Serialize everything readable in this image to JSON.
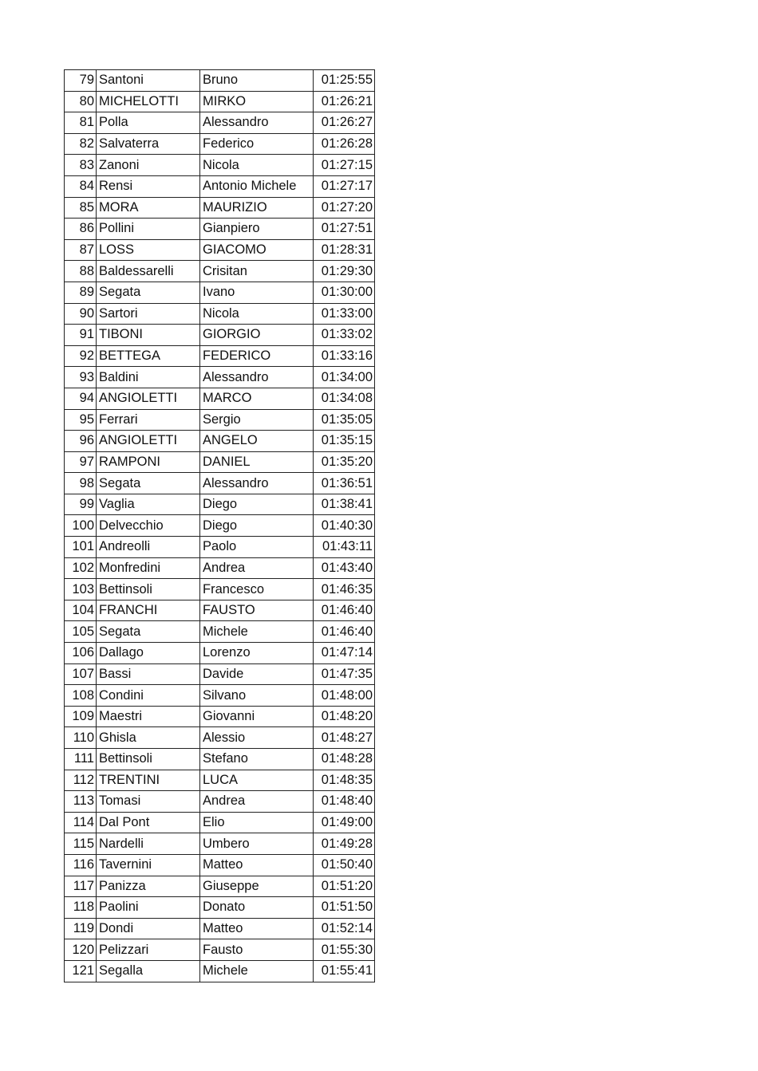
{
  "results": [
    [
      "79",
      "Santoni",
      "Bruno",
      "01:25:55"
    ],
    [
      "80",
      "MICHELOTTI",
      "MIRKO",
      "01:26:21"
    ],
    [
      "81",
      "Polla",
      "Alessandro",
      "01:26:27"
    ],
    [
      "82",
      "Salvaterra",
      "Federico",
      "01:26:28"
    ],
    [
      "83",
      "Zanoni",
      "Nicola",
      "01:27:15"
    ],
    [
      "84",
      "Rensi",
      "Antonio Michele",
      "01:27:17"
    ],
    [
      "85",
      "MORA",
      "MAURIZIO",
      "01:27:20"
    ],
    [
      "86",
      "Pollini",
      "Gianpiero",
      "01:27:51"
    ],
    [
      "87",
      "LOSS",
      "GIACOMO",
      "01:28:31"
    ],
    [
      "88",
      "Baldessarelli",
      "Crisitan",
      "01:29:30"
    ],
    [
      "89",
      "Segata",
      "Ivano",
      "01:30:00"
    ],
    [
      "90",
      "Sartori",
      "Nicola",
      "01:33:00"
    ],
    [
      "91",
      "TIBONI",
      "GIORGIO",
      "01:33:02"
    ],
    [
      "92",
      "BETTEGA",
      "FEDERICO",
      "01:33:16"
    ],
    [
      "93",
      "Baldini",
      "Alessandro",
      "01:34:00"
    ],
    [
      "94",
      "ANGIOLETTI",
      "MARCO",
      "01:34:08"
    ],
    [
      "95",
      "Ferrari",
      "Sergio",
      "01:35:05"
    ],
    [
      "96",
      "ANGIOLETTI",
      "ANGELO",
      "01:35:15"
    ],
    [
      "97",
      "RAMPONI",
      "DANIEL",
      "01:35:20"
    ],
    [
      "98",
      "Segata",
      "Alessandro",
      "01:36:51"
    ],
    [
      "99",
      "Vaglia",
      "Diego",
      "01:38:41"
    ],
    [
      "100",
      "Delvecchio",
      "Diego",
      "01:40:30"
    ],
    [
      "101",
      "Andreolli",
      "Paolo",
      "01:43:11"
    ],
    [
      "102",
      "Monfredini",
      "Andrea",
      "01:43:40"
    ],
    [
      "103",
      "Bettinsoli",
      "Francesco",
      "01:46:35"
    ],
    [
      "104",
      "FRANCHI",
      "FAUSTO",
      "01:46:40"
    ],
    [
      "105",
      "Segata",
      "Michele",
      "01:46:40"
    ],
    [
      "106",
      "Dallago",
      "Lorenzo",
      "01:47:14"
    ],
    [
      "107",
      "Bassi",
      "Davide",
      "01:47:35"
    ],
    [
      "108",
      "Condini",
      "Silvano",
      "01:48:00"
    ],
    [
      "109",
      "Maestri",
      "Giovanni",
      "01:48:20"
    ],
    [
      "110",
      "Ghisla",
      "Alessio",
      "01:48:27"
    ],
    [
      "111",
      "Bettinsoli",
      "Stefano",
      "01:48:28"
    ],
    [
      "112",
      "TRENTINI",
      "LUCA",
      "01:48:35"
    ],
    [
      "113",
      "Tomasi",
      "Andrea",
      "01:48:40"
    ],
    [
      "114",
      "Dal Pont",
      "Elio",
      "01:49:00"
    ],
    [
      "115",
      "Nardelli",
      "Umbero",
      "01:49:28"
    ],
    [
      "116",
      "Tavernini",
      "Matteo",
      "01:50:40"
    ],
    [
      "117",
      "Panizza",
      "Giuseppe",
      "01:51:20"
    ],
    [
      "118",
      "Paolini",
      "Donato",
      "01:51:50"
    ],
    [
      "119",
      "Dondi",
      "Matteo",
      "01:52:14"
    ],
    [
      "120",
      "Pelizzari",
      "Fausto",
      "01:55:30"
    ],
    [
      "121",
      "Segalla",
      "Michele",
      "01:55:41"
    ]
  ]
}
